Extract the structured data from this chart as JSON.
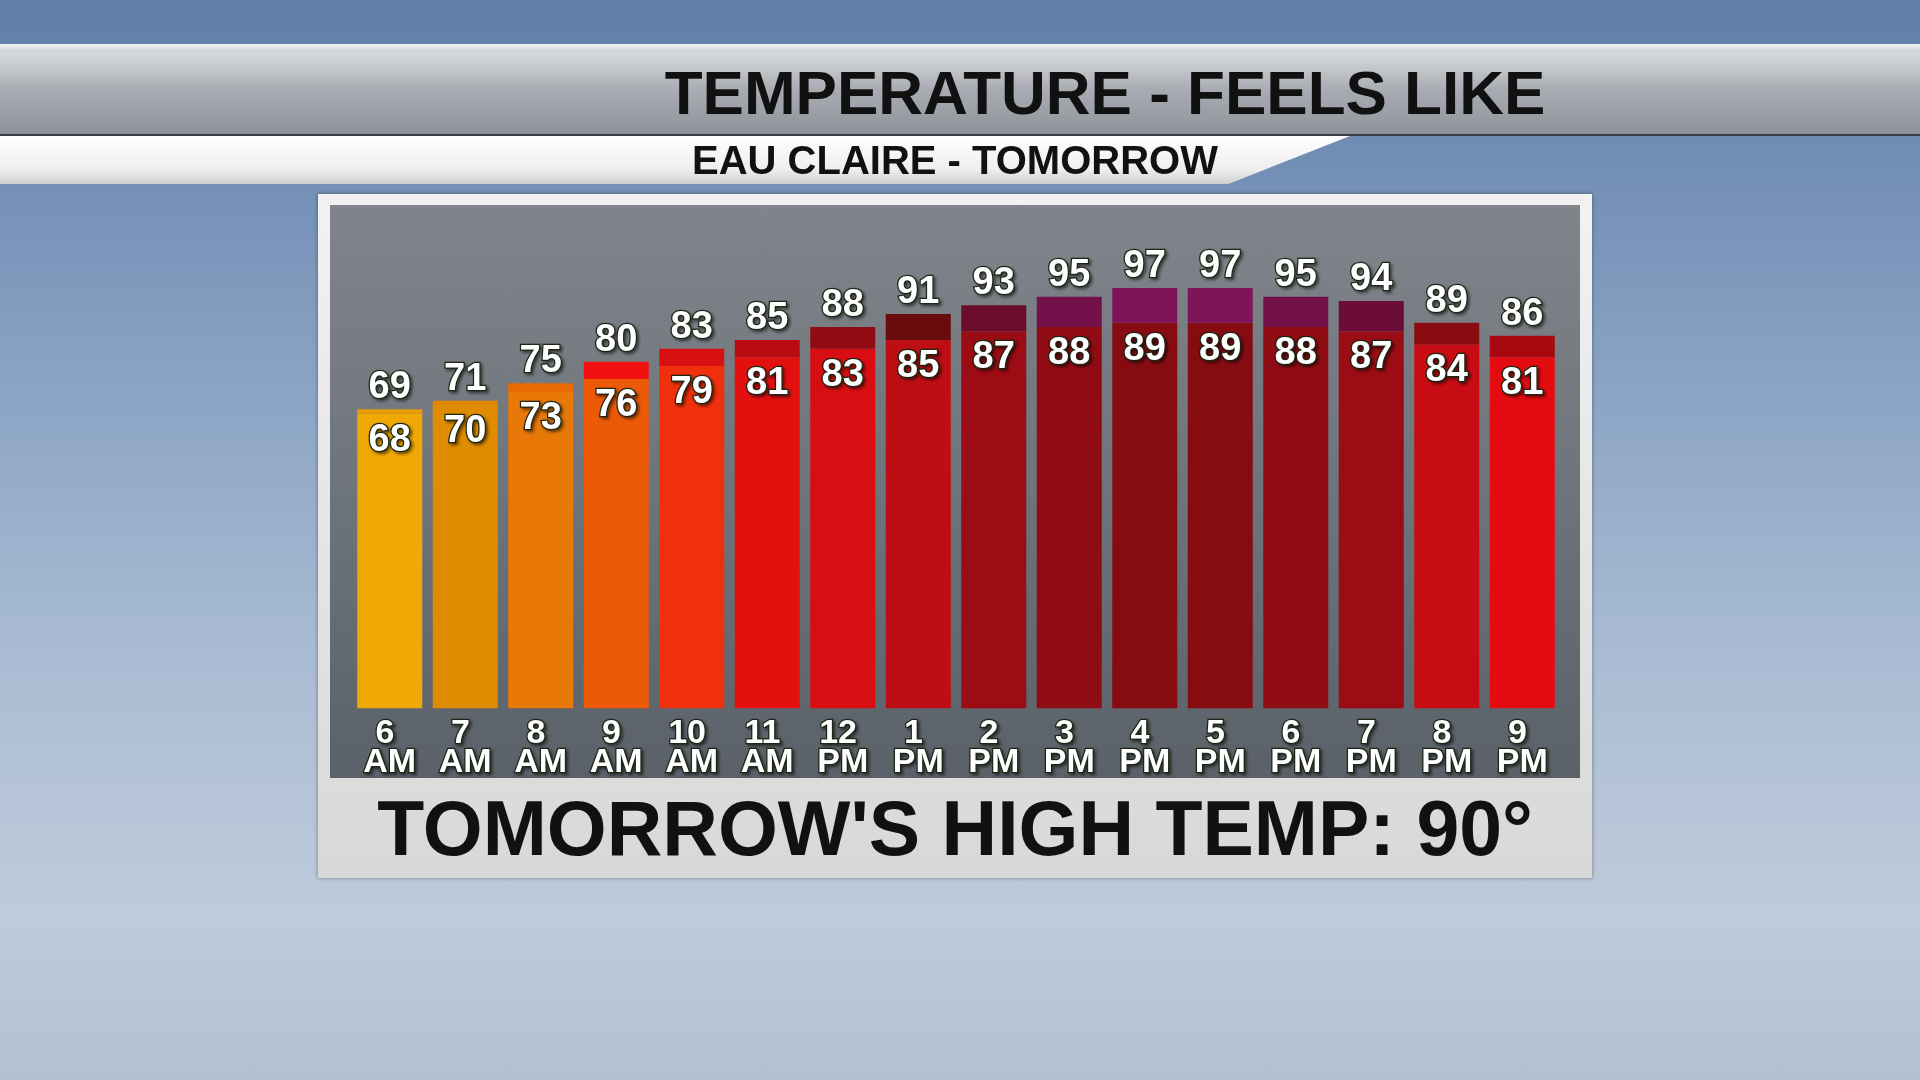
{
  "chart_data": {
    "type": "bar",
    "title": "TEMPERATURE - FEELS LIKE",
    "subtitle": "EAU CLAIRE - TOMORROW",
    "categories": [
      "6 AM",
      "7 AM",
      "8 AM",
      "9 AM",
      "10 AM",
      "11 AM",
      "12 PM",
      "1 PM",
      "2 PM",
      "3 PM",
      "4 PM",
      "5 PM",
      "6 PM",
      "7 PM",
      "8 PM",
      "9 PM"
    ],
    "stacked": true,
    "tick_labels": "x",
    "series": [
      {
        "values": [
          68,
          70,
          73,
          76,
          79,
          81,
          83,
          85,
          87,
          88,
          89,
          89,
          88,
          87,
          84,
          81
        ],
        "colors": [
          "#f0a805",
          "#e08c00",
          "#e87808",
          "#ec5a08",
          "#f0300c",
          "#e41010",
          "#d80e12",
          "#bc0e14",
          "#9c0c14",
          "#900c14",
          "#860c12",
          "#860c12",
          "#900c14",
          "#9c0c14",
          "#c80c14",
          "#e40c10"
        ],
        "value_labels": [
          "68",
          "70",
          "73",
          "76",
          "79",
          "81",
          "83",
          "85",
          "87",
          "88",
          "89",
          "89",
          "88",
          "87",
          "84",
          "81"
        ]
      },
      {
        "values": [
          1,
          1,
          2,
          4,
          4,
          4,
          5,
          6,
          6,
          7,
          8,
          8,
          7,
          7,
          5,
          5
        ],
        "colors": [
          "#e89c05",
          "#e08800",
          "#e86a00",
          "#f01010",
          "#d81010",
          "#b80c10",
          "#900c12",
          "#680c0c",
          "#6c0c2c",
          "#74104a",
          "#801458",
          "#801458",
          "#741048",
          "#6c0c38",
          "#880c10",
          "#a80810"
        ]
      }
    ],
    "totals": [
      "69",
      "71",
      "75",
      "80",
      "83",
      "85",
      "88",
      "91",
      "93",
      "95",
      "97",
      "97",
      "95",
      "94",
      "89",
      "86"
    ],
    "annotations": [
      "TOMORROW'S HIGH TEMP: 90°"
    ]
  }
}
